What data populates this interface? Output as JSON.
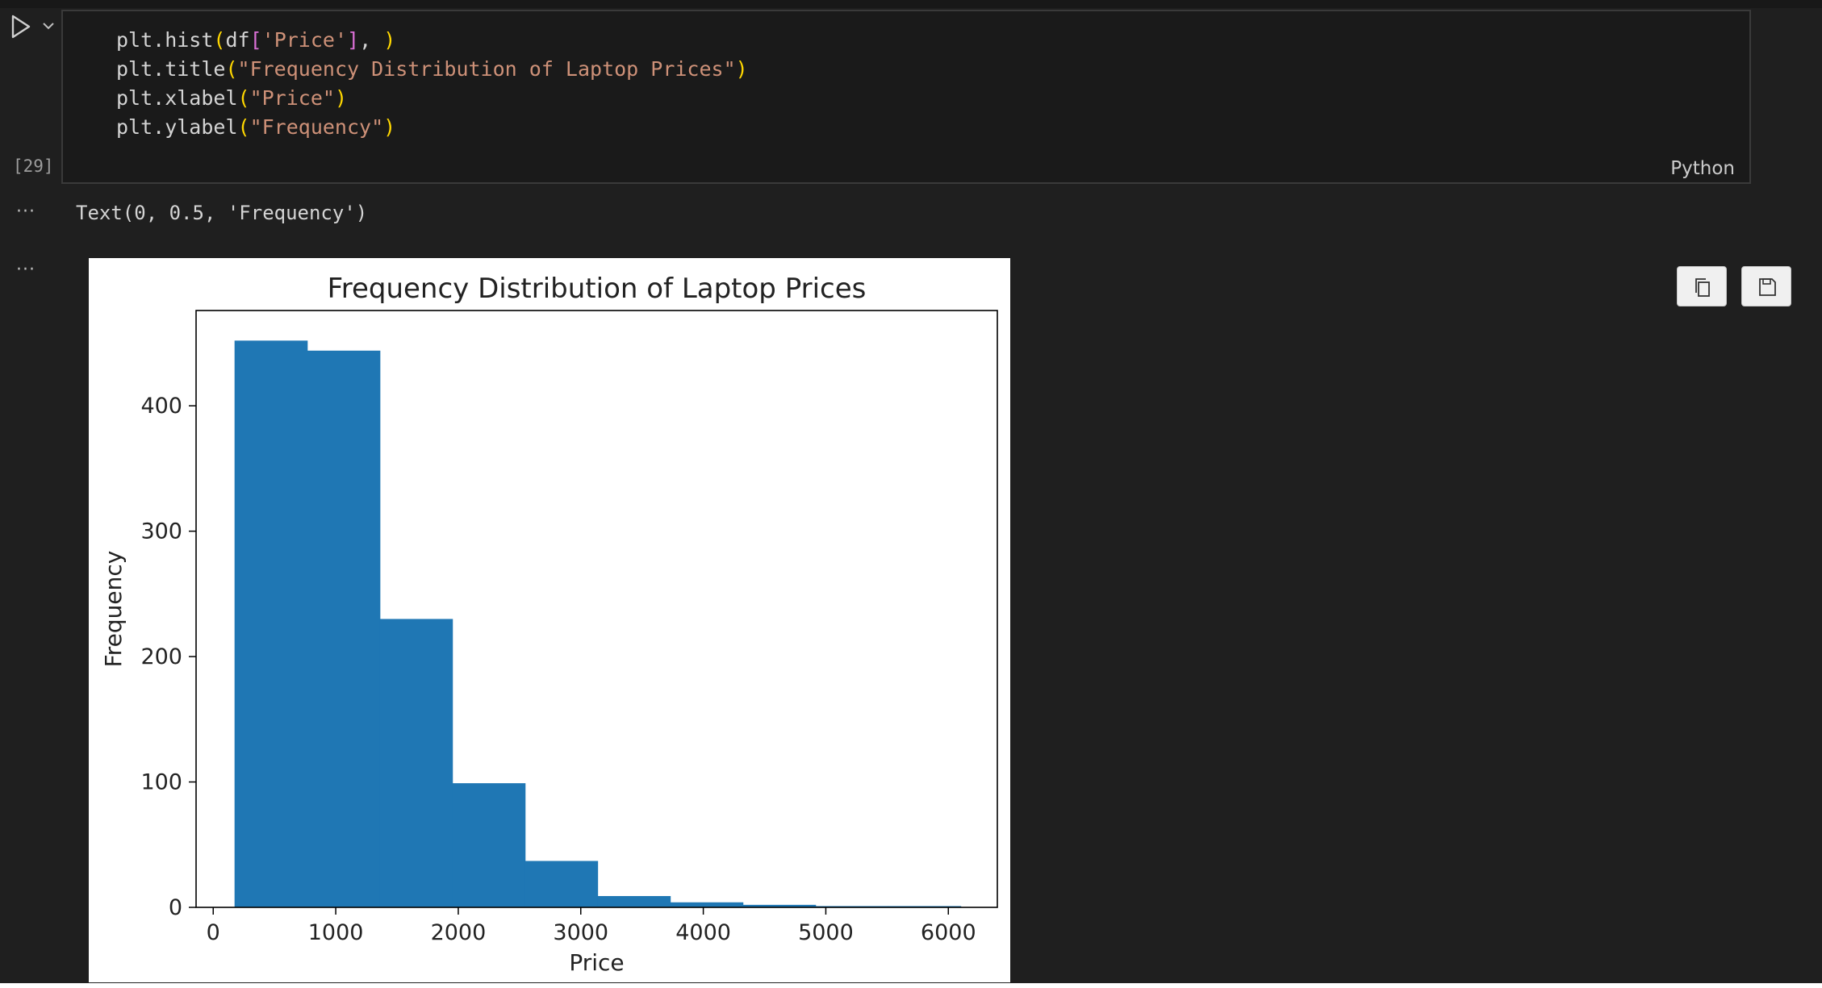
{
  "cell": {
    "execution_count": "[29]",
    "language": "Python",
    "code_lines": [
      [
        {
          "t": "plt.hist",
          "c": "plain"
        },
        {
          "t": "(",
          "c": "paren"
        },
        {
          "t": "df",
          "c": "plain"
        },
        {
          "t": "[",
          "c": "bracket"
        },
        {
          "t": "'Price'",
          "c": "str"
        },
        {
          "t": "]",
          "c": "bracket"
        },
        {
          "t": ", ",
          "c": "plain"
        },
        {
          "t": ")",
          "c": "paren"
        }
      ],
      [
        {
          "t": "plt.title",
          "c": "plain"
        },
        {
          "t": "(",
          "c": "paren"
        },
        {
          "t": "\"Frequency Distribution of Laptop Prices\"",
          "c": "str"
        },
        {
          "t": ")",
          "c": "paren"
        }
      ],
      [
        {
          "t": "plt.xlabel",
          "c": "plain"
        },
        {
          "t": "(",
          "c": "paren"
        },
        {
          "t": "\"Price\"",
          "c": "str"
        },
        {
          "t": ")",
          "c": "paren"
        }
      ],
      [
        {
          "t": "plt.ylabel",
          "c": "plain"
        },
        {
          "t": "(",
          "c": "paren"
        },
        {
          "t": "\"Frequency\"",
          "c": "str"
        },
        {
          "t": ")",
          "c": "paren"
        }
      ]
    ]
  },
  "output": {
    "ellipsis": "···",
    "text_result": "Text(0, 0.5, 'Frequency')"
  },
  "toolbar": {
    "copy_icon": "copy-icon",
    "save_icon": "save-icon"
  },
  "chart_data": {
    "type": "bar",
    "title": "Frequency Distribution of Laptop Prices",
    "xlabel": "Price",
    "ylabel": "Frequency",
    "bin_edges": [
      174,
      767,
      1360,
      1952,
      2545,
      3137,
      3730,
      4323,
      4916,
      5508,
      6101
    ],
    "values": [
      452,
      444,
      230,
      99,
      37,
      9,
      4,
      2,
      1,
      1
    ],
    "xlim": [
      -140,
      6400
    ],
    "ylim": [
      0,
      476
    ],
    "xticks": [
      0,
      1000,
      2000,
      3000,
      4000,
      5000,
      6000
    ],
    "yticks": [
      0,
      100,
      200,
      300,
      400
    ],
    "bar_color": "#1f77b4",
    "grid": false
  }
}
